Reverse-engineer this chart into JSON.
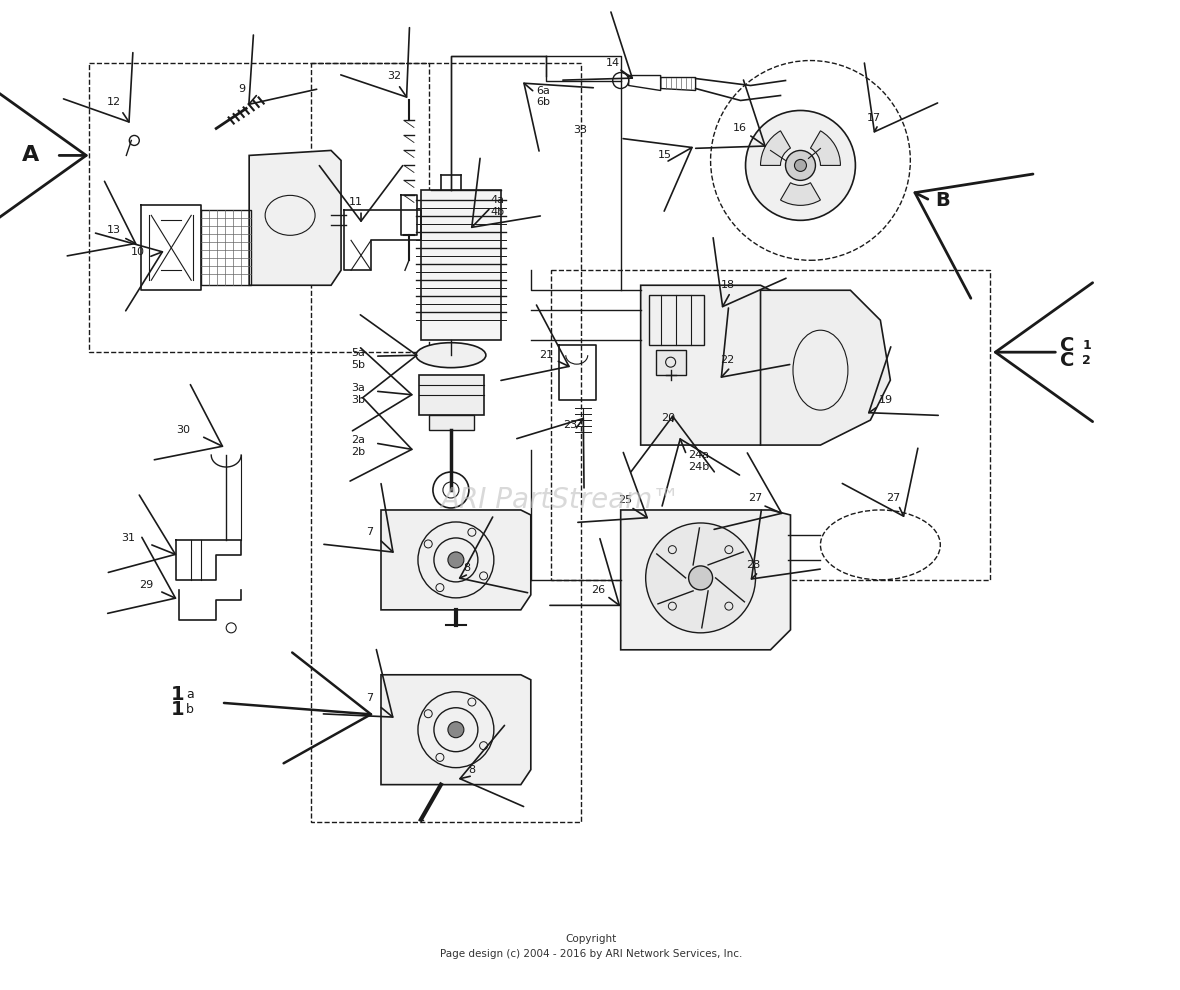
{
  "bg_color": "#ffffff",
  "fig_width": 11.8,
  "fig_height": 9.9,
  "copyright_line1": "Copyright",
  "copyright_line2": "Page design (c) 2004 - 2016 by ARI Network Services, Inc.",
  "watermark": "ARI PartStream™",
  "black": "#1a1a1a",
  "gray": "#888888",
  "light_gray": "#cccccc"
}
